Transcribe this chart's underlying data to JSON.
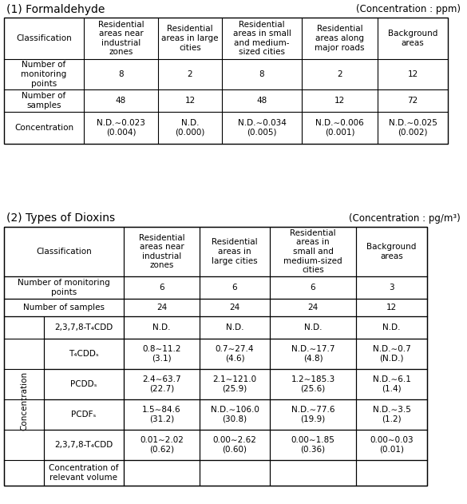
{
  "title1": "(1) Formaldehyde",
  "conc_label1": "(Concentration : ppm)",
  "title2": "(2) Types of Dioxins",
  "conc_label2": "(Concentration : pg/m³)",
  "table1_headers": [
    "Classification",
    "Residential\nareas near\nindustrial\nzones",
    "Residential\nareas in large\ncities",
    "Residential\nareas in small\nand medium-\nsized cities",
    "Residential\nareas along\nmajor roads",
    "Background\nareas"
  ],
  "table1_rows": [
    [
      "Number of\nmonitoring\npoints",
      "8",
      "2",
      "8",
      "2",
      "12"
    ],
    [
      "Number of\nsamples",
      "48",
      "12",
      "48",
      "12",
      "72"
    ],
    [
      "Concentration",
      "N.D.∼0.023\n(0.004)",
      "N.D.\n(0.000)",
      "N.D.∼0.034\n(0.005)",
      "N.D.∼0.006\n(0.001)",
      "N.D.∼0.025\n(0.002)"
    ]
  ],
  "table2_headers": [
    "Classification",
    "Residential\nareas near\nindustrial\nzones",
    "Residential\nareas in\nlarge cities",
    "Residential\nareas in\nsmall and\nmedium-sized\ncities",
    "Background\nareas"
  ],
  "table2_row_monitor": [
    "Number of monitoring\npoints",
    "6",
    "6",
    "6",
    "3"
  ],
  "table2_row_samples": [
    "Number of samples",
    "24",
    "24",
    "24",
    "12"
  ],
  "table2_conc_label": "Concentration",
  "table2_conc_rows": [
    [
      "2,3,7,8-T₄CDD",
      "N.D.",
      "N.D.",
      "N.D.",
      "N.D."
    ],
    [
      "T₄CDDₛ",
      "0.8∼11.2\n(3.1)",
      "0.7∼27.4\n(4.6)",
      "N.D.∼17.7\n(4.8)",
      "N.D.∼0.7\n(N.D.)"
    ],
    [
      "PCDDₛ",
      "2.4∼63.7\n(22.7)",
      "2.1∼121.0\n(25.9)",
      "1.2∼185.3\n(25.6)",
      "N.D.∼6.1\n(1.4)"
    ],
    [
      "PCDFₛ",
      "1.5∼84.6\n(31.2)",
      "N.D.∼106.0\n(30.8)",
      "N.D.∼77.6\n(19.9)",
      "N.D.∼3.5\n(1.2)"
    ],
    [
      "2,3,7,8-T₄CDD",
      "0.01∼2.02\n(0.62)",
      "0.00∼2.62\n(0.60)",
      "0.00∼1.85\n(0.36)",
      "0.00∼0.03\n(0.01)"
    ],
    [
      "Concentration of\nrelevant volume",
      "",
      "",
      "",
      ""
    ]
  ],
  "bg_color": "#ffffff",
  "text_color": "#000000",
  "line_color": "#000000",
  "font_size": 7.5
}
